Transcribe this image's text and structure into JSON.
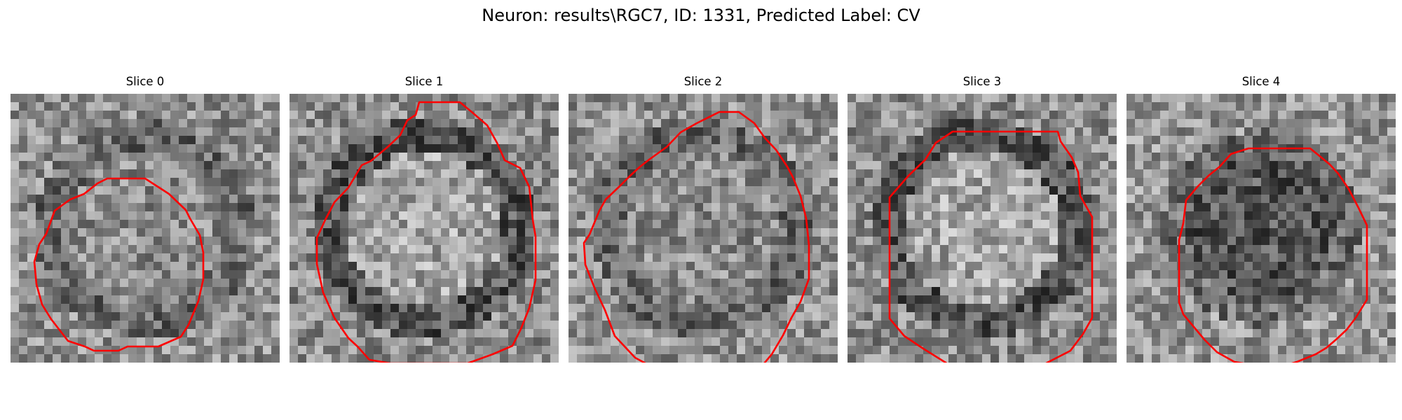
{
  "figure": {
    "title": "Neuron: results\\RGC7, ID: 1331, Predicted Label: CV"
  },
  "panels": [
    {
      "title": "Slice 0",
      "tone": "mid",
      "seed": 11
    },
    {
      "title": "Slice 1",
      "tone": "bright-center-dark-ring",
      "seed": 23
    },
    {
      "title": "Slice 2",
      "tone": "mid",
      "seed": 37
    },
    {
      "title": "Slice 3",
      "tone": "bright-center-dark-ring",
      "seed": 41
    },
    {
      "title": "Slice 4",
      "tone": "dark-center",
      "seed": 59
    }
  ],
  "colors": {
    "contour": "#ff0000",
    "background": "#ffffff"
  },
  "image": {
    "grid_size": 32,
    "colormap": "grayscale"
  }
}
